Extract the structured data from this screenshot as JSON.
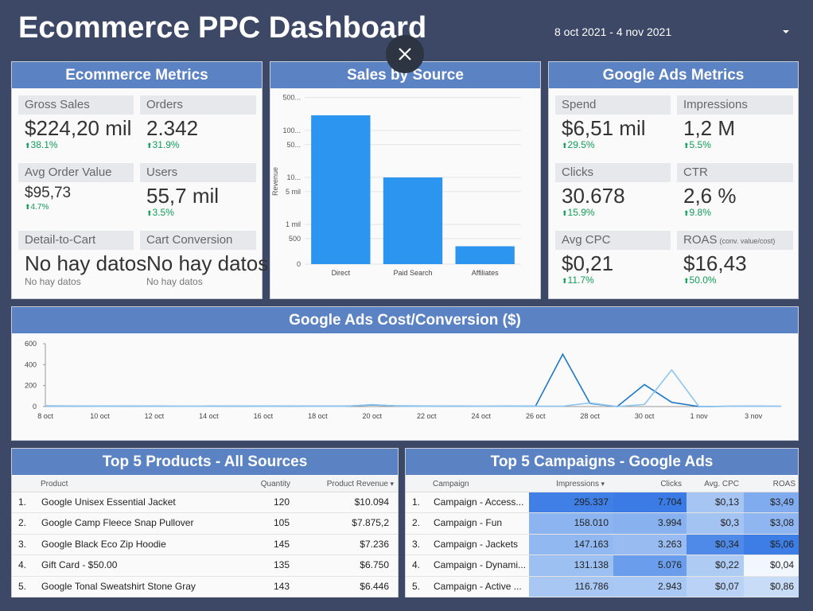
{
  "header": {
    "title": "Ecommerce PPC Dashboard",
    "date_range": "8 oct 2021 - 4 nov 2021"
  },
  "ecommerce_metrics": {
    "title": "Ecommerce Metrics",
    "cards": [
      {
        "label": "Gross Sales",
        "value": "$224,20 mil",
        "change": "38.1%"
      },
      {
        "label": "Orders",
        "value": "2.342",
        "change": "31.9%"
      },
      {
        "label": "Avg Order Value",
        "value": "$95,73",
        "change": "4.7%",
        "size": "small"
      },
      {
        "label": "Users",
        "value": "55,7 mil",
        "change": "3.5%"
      },
      {
        "label": "Detail-to-Cart",
        "value": "No hay datos",
        "note": "No hay datos"
      },
      {
        "label": "Cart Conversion",
        "value": "No hay datos",
        "note": "No hay datos"
      }
    ]
  },
  "chart_data": {
    "type": "bar",
    "title": "Sales by Source",
    "y_label": "Revenue",
    "categories": [
      "Direct",
      "Paid Search",
      "Affiliates"
    ],
    "values": [
      210000,
      10000,
      350
    ],
    "color": "#2b95f0",
    "log_scale": true,
    "ylim": [
      0,
      600000
    ],
    "yticks": [
      {
        "value": 500000,
        "label": "500..."
      },
      {
        "value": 100000,
        "label": "100..."
      },
      {
        "value": 50000,
        "label": "50..."
      },
      {
        "value": 10000,
        "label": "10..."
      },
      {
        "value": 5000,
        "label": "5 mil"
      },
      {
        "value": 1000,
        "label": "1 mil"
      },
      500,
      0
    ],
    "grid": true
  },
  "google_ads_metrics": {
    "title": "Google Ads Metrics",
    "cards": [
      {
        "label": "Spend",
        "value": "$6,51 mil",
        "change": "29.5%"
      },
      {
        "label": "Impressions",
        "value": "1,2 M",
        "change": "5.5%"
      },
      {
        "label": "Clicks",
        "value": "30.678",
        "change": "15.9%"
      },
      {
        "label": "CTR",
        "value": "2,6 %",
        "change": "9.8%"
      },
      {
        "label": "Avg CPC",
        "value": "$0,21",
        "change": "11.7%"
      },
      {
        "label": "ROAS",
        "label_note": "(conv. value/cost)",
        "value": "$16,43",
        "change": "50.0%"
      }
    ]
  },
  "cost_chart": {
    "type": "line",
    "title": "Google Ads  Cost/Conversion ($)",
    "categories": [
      "8 oct",
      null,
      "10 oct",
      null,
      "12 oct",
      null,
      "14 oct",
      null,
      "16 oct",
      null,
      "18 oct",
      null,
      "20 oct",
      null,
      "22 oct",
      null,
      "24 oct",
      null,
      "26 oct",
      null,
      "28 oct",
      null,
      "30 oct",
      null,
      "1 nov",
      null,
      "3 nov",
      null
    ],
    "series": [
      {
        "color": "#1f78c8",
        "values": [
          5,
          4,
          3,
          4,
          3,
          2,
          3,
          4,
          3,
          4,
          3,
          3,
          15,
          5,
          3,
          4,
          2,
          3,
          4,
          500,
          30,
          0,
          210,
          40,
          0,
          2,
          3,
          2
        ]
      },
      {
        "color": "#8ec5ee",
        "values": [
          3,
          3,
          2,
          3,
          2,
          2,
          2,
          3,
          2,
          3,
          2,
          2,
          18,
          4,
          2,
          3,
          2,
          2,
          3,
          3,
          35,
          0,
          20,
          350,
          0,
          2,
          2,
          2
        ]
      }
    ],
    "ylim": [
      0,
      600
    ],
    "yticks": [
      0,
      200,
      400,
      600
    ]
  },
  "top_products": {
    "title": "Top 5 Products - All Sources",
    "columns": [
      "Product",
      "Quantity",
      "Product Revenue"
    ],
    "rows": [
      [
        "1.",
        "Google Unisex Essential Jacket",
        "120",
        "$10.094"
      ],
      [
        "2.",
        "Google Camp Fleece Snap Pullover",
        "105",
        "$7.875,2"
      ],
      [
        "3.",
        "Google Black Eco Zip Hoodie",
        "145",
        "$7.236"
      ],
      [
        "4.",
        "Gift Card - $50.00",
        "135",
        "$6.750"
      ],
      [
        "5.",
        "Google Tonal Sweatshirt Stone Gray",
        "143",
        "$6.446"
      ]
    ]
  },
  "top_campaigns": {
    "title": "Top 5 Campaigns - Google Ads",
    "columns": [
      "Campaign",
      "Impressions",
      "Clicks",
      "Avg. CPC",
      "ROAS"
    ],
    "rows": [
      [
        "1.",
        "Campaign - Access...",
        "295.337",
        "7.704",
        "$0,13",
        "$3,49"
      ],
      [
        "2.",
        "Campaign - Fun",
        "158.010",
        "3.994",
        "$0,3",
        "$3,08"
      ],
      [
        "3.",
        "Campaign - Jackets",
        "147.163",
        "3.263",
        "$0,34",
        "$5,06"
      ],
      [
        "4.",
        "Campaign - Dynami...",
        "131.138",
        "5.076",
        "$0,22",
        "$0,04"
      ],
      [
        "5.",
        "Campaign - Active ...",
        "116.786",
        "2.943",
        "$0,07",
        "$0,86"
      ]
    ],
    "heat_colors": [
      [
        "#3f7fe6",
        "#3b7be6",
        "#a6c5f3",
        "#80acef"
      ],
      [
        "#8cb4f0",
        "#87b1ef",
        "#a3c3f3",
        "#8fb6f1"
      ],
      [
        "#92b8f1",
        "#98bcf2",
        "#4f8ae8",
        "#3d7de6"
      ],
      [
        "#9dc0f2",
        "#6a9eec",
        "#aecbf4",
        "#f2f6fd"
      ],
      [
        "#a8c7f3",
        "#a9c8f4",
        "#b9d2f5",
        "#c9dcf7"
      ]
    ]
  }
}
